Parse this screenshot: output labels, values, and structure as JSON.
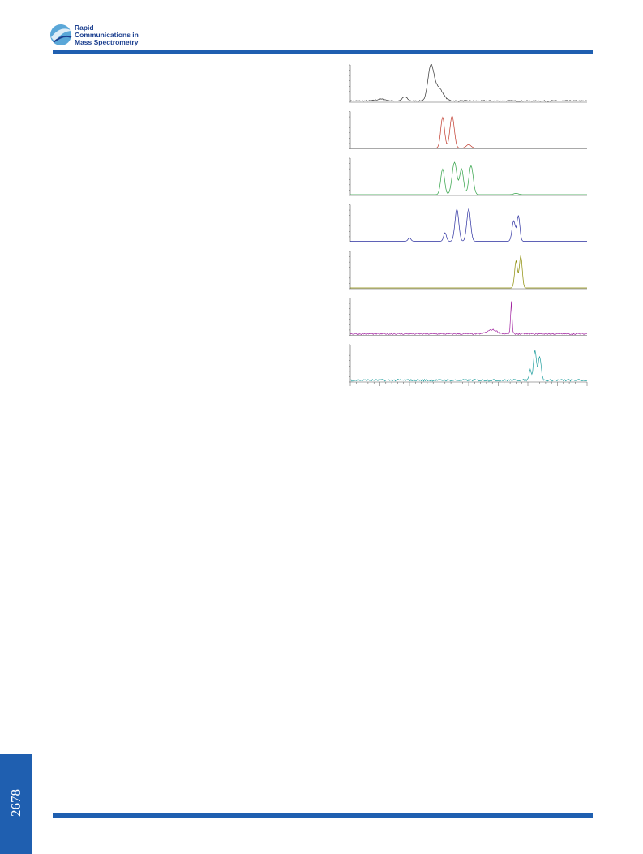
{
  "header": {
    "journal": [
      "Rapid",
      "Communications in",
      "Mass Spectrometry"
    ]
  },
  "page_number": "2678"
}
